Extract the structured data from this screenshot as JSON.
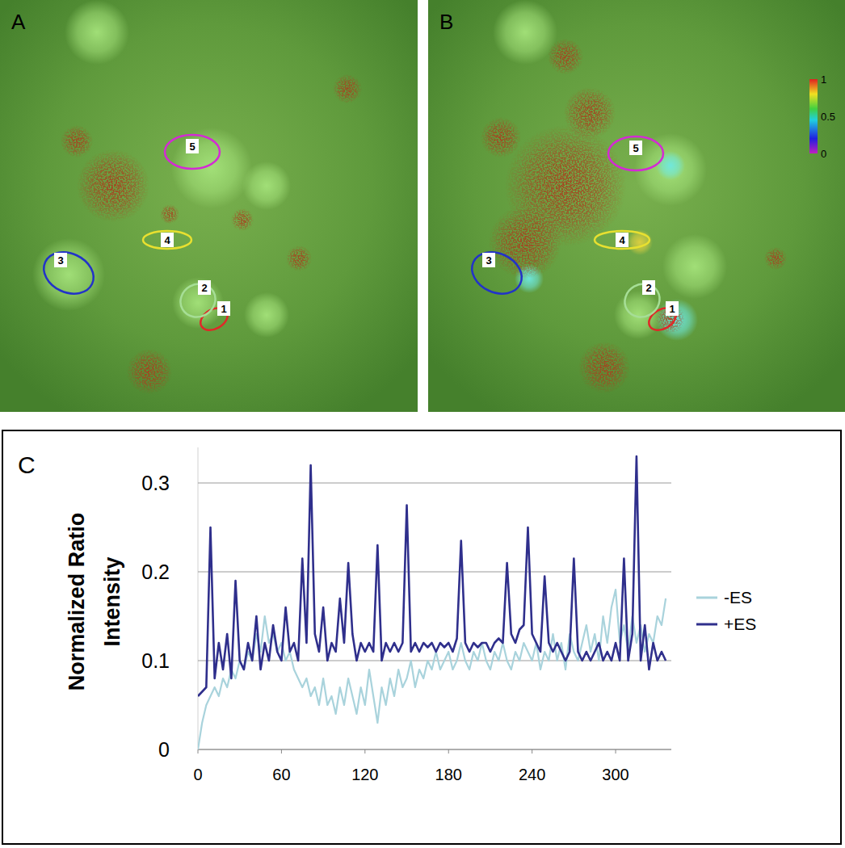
{
  "panels": [
    {
      "label": "A",
      "rois": [
        {
          "label": "1",
          "color": "#e02828"
        },
        {
          "label": "2",
          "color": "#a6de96"
        },
        {
          "label": "3",
          "color": "#2233c8"
        },
        {
          "label": "4",
          "color": "#e8e030"
        },
        {
          "label": "5",
          "color": "#d42ad4"
        }
      ]
    },
    {
      "label": "B",
      "rois": [
        {
          "label": "1",
          "color": "#e02828"
        },
        {
          "label": "2",
          "color": "#a6de96"
        },
        {
          "label": "3",
          "color": "#2233c8"
        },
        {
          "label": "4",
          "color": "#e8e030"
        },
        {
          "label": "5",
          "color": "#d42ad4"
        }
      ],
      "colorbar": {
        "range": [
          0,
          1
        ],
        "ticks": [
          0,
          0.5,
          1
        ]
      }
    }
  ],
  "chart_data": {
    "type": "line",
    "title": "C",
    "y_label": "Normalized Ratio Intensity",
    "x": [
      0,
      3,
      6,
      9,
      12,
      15,
      18,
      21,
      24,
      27,
      30,
      33,
      36,
      39,
      42,
      45,
      48,
      51,
      54,
      57,
      60,
      63,
      66,
      69,
      72,
      75,
      78,
      81,
      84,
      87,
      90,
      93,
      96,
      99,
      102,
      105,
      108,
      111,
      114,
      117,
      120,
      123,
      126,
      129,
      132,
      135,
      138,
      141,
      144,
      147,
      150,
      153,
      156,
      159,
      162,
      165,
      168,
      171,
      174,
      177,
      180,
      183,
      186,
      189,
      192,
      195,
      198,
      201,
      204,
      207,
      210,
      213,
      216,
      219,
      222,
      225,
      228,
      231,
      234,
      237,
      240,
      243,
      246,
      249,
      252,
      255,
      258,
      261,
      264,
      267,
      270,
      273,
      276,
      279,
      282,
      285,
      288,
      291,
      294,
      297,
      300,
      303,
      306,
      309,
      312,
      315,
      318,
      321,
      324,
      327,
      330,
      333,
      336
    ],
    "series": [
      {
        "name": "-ES",
        "color": "#a9d3dc",
        "values": [
          0,
          0.03,
          0.05,
          0.06,
          0.07,
          0.06,
          0.08,
          0.07,
          0.09,
          0.08,
          0.1,
          0.09,
          0.11,
          0.1,
          0.13,
          0.11,
          0.15,
          0.12,
          0.13,
          0.11,
          0.12,
          0.1,
          0.11,
          0.09,
          0.08,
          0.07,
          0.08,
          0.06,
          0.07,
          0.05,
          0.08,
          0.05,
          0.06,
          0.04,
          0.07,
          0.05,
          0.08,
          0.06,
          0.04,
          0.07,
          0.05,
          0.09,
          0.06,
          0.03,
          0.07,
          0.05,
          0.08,
          0.06,
          0.09,
          0.07,
          0.08,
          0.1,
          0.07,
          0.09,
          0.08,
          0.1,
          0.09,
          0.11,
          0.09,
          0.1,
          0.11,
          0.09,
          0.1,
          0.12,
          0.1,
          0.09,
          0.11,
          0.1,
          0.12,
          0.1,
          0.09,
          0.11,
          0.1,
          0.12,
          0.1,
          0.09,
          0.11,
          0.1,
          0.12,
          0.11,
          0.1,
          0.12,
          0.09,
          0.11,
          0.1,
          0.13,
          0.1,
          0.12,
          0.09,
          0.13,
          0.11,
          0.1,
          0.12,
          0.14,
          0.11,
          0.13,
          0.1,
          0.15,
          0.12,
          0.16,
          0.18,
          0.12,
          0.14,
          0.11,
          0.15,
          0.12,
          0.14,
          0.11,
          0.13,
          0.12,
          0.15,
          0.14,
          0.17
        ]
      },
      {
        "name": "+ES",
        "color": "#2f2f8c",
        "values": [
          0.06,
          0.065,
          0.07,
          0.25,
          0.08,
          0.12,
          0.09,
          0.13,
          0.08,
          0.19,
          0.1,
          0.09,
          0.12,
          0.1,
          0.15,
          0.09,
          0.12,
          0.1,
          0.14,
          0.11,
          0.1,
          0.16,
          0.11,
          0.12,
          0.1,
          0.215,
          0.12,
          0.32,
          0.13,
          0.11,
          0.16,
          0.1,
          0.12,
          0.11,
          0.17,
          0.12,
          0.21,
          0.13,
          0.1,
          0.12,
          0.11,
          0.12,
          0.11,
          0.23,
          0.1,
          0.12,
          0.11,
          0.12,
          0.11,
          0.12,
          0.275,
          0.11,
          0.12,
          0.11,
          0.12,
          0.115,
          0.12,
          0.11,
          0.12,
          0.115,
          0.12,
          0.11,
          0.125,
          0.235,
          0.12,
          0.11,
          0.12,
          0.115,
          0.12,
          0.12,
          0.11,
          0.12,
          0.125,
          0.12,
          0.21,
          0.13,
          0.12,
          0.135,
          0.14,
          0.25,
          0.13,
          0.12,
          0.11,
          0.195,
          0.12,
          0.11,
          0.12,
          0.11,
          0.1,
          0.11,
          0.215,
          0.11,
          0.1,
          0.11,
          0.1,
          0.11,
          0.12,
          0.1,
          0.11,
          0.1,
          0.12,
          0.1,
          0.215,
          0.1,
          0.13,
          0.33,
          0.1,
          0.14,
          0.09,
          0.12,
          0.1,
          0.11,
          0.1
        ]
      }
    ],
    "xlim": [
      0,
      340
    ],
    "xticks": [
      0,
      60,
      120,
      180,
      240,
      300
    ],
    "ylim": [
      0,
      0.34
    ],
    "yticks": [
      0,
      0.1,
      0.2,
      0.3
    ],
    "grid": true,
    "legend": "right"
  }
}
